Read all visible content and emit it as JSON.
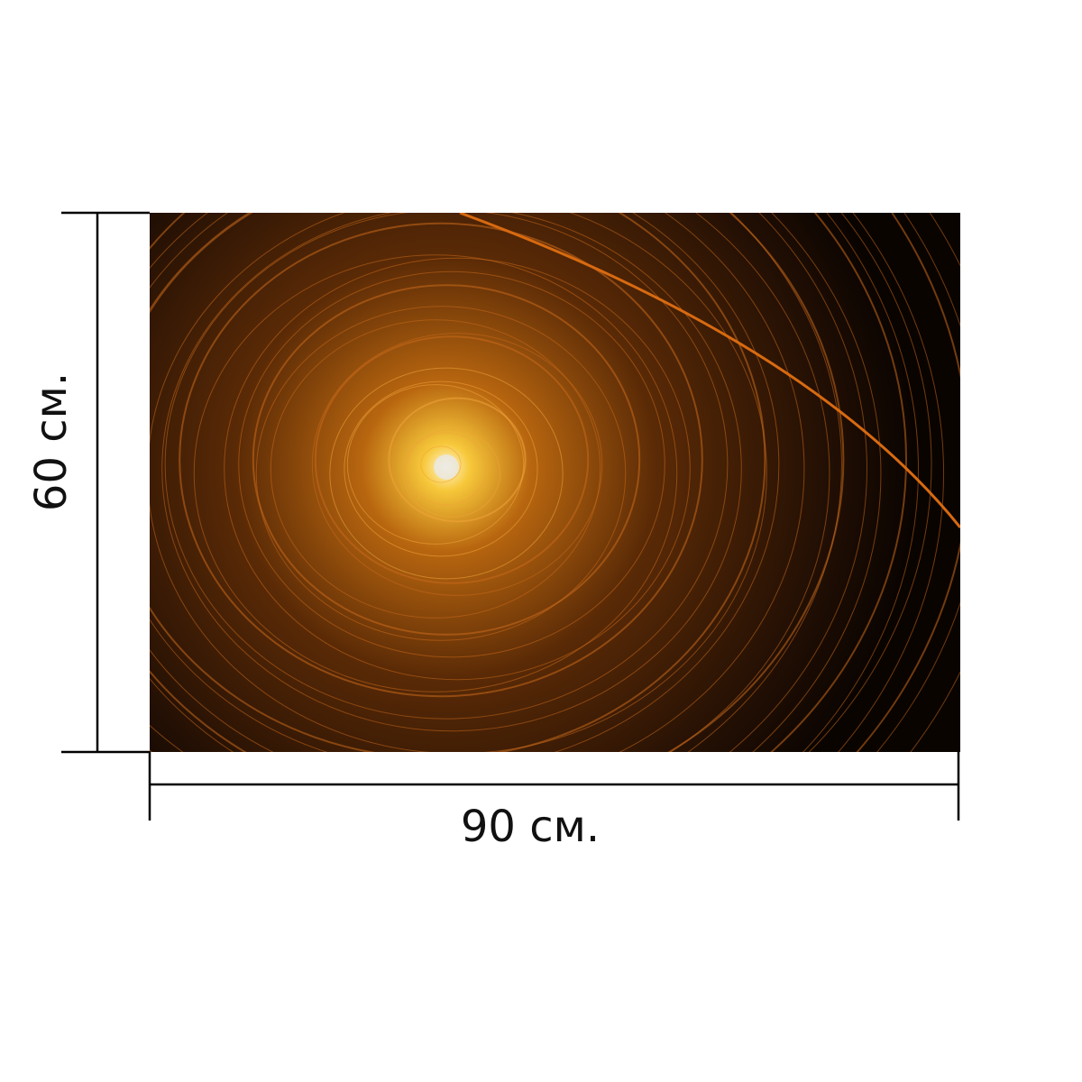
{
  "dimensions": {
    "width": "90 см.",
    "height": "60 см."
  }
}
